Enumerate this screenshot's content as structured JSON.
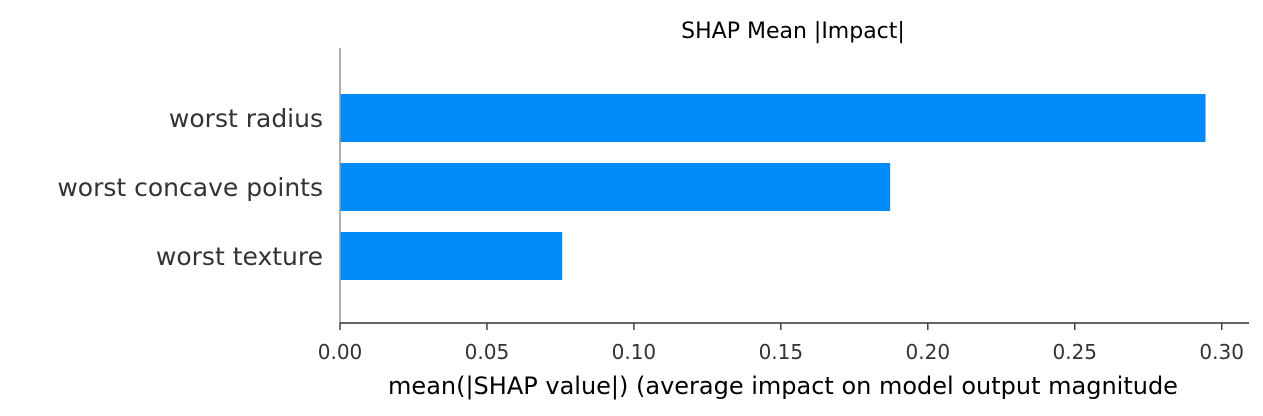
{
  "chart_data": {
    "type": "bar",
    "orientation": "horizontal",
    "title": "SHAP Mean |Impact|",
    "xlabel": "mean(|SHAP value|) (average impact on model output magnitude",
    "ylabel": "",
    "categories": [
      "worst radius",
      "worst concave points",
      "worst texture"
    ],
    "values": [
      0.2945,
      0.1872,
      0.0756
    ],
    "xlim": [
      0,
      0.31
    ],
    "xticks": [
      0.0,
      0.05,
      0.1,
      0.15,
      0.2,
      0.25,
      0.3
    ],
    "xtick_labels": [
      "0.00",
      "0.05",
      "0.10",
      "0.15",
      "0.20",
      "0.25",
      "0.30"
    ],
    "bar_color": "#008bfb",
    "grid": false,
    "legend": "none"
  }
}
